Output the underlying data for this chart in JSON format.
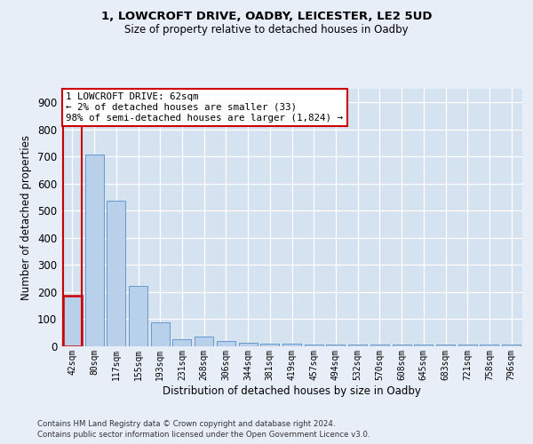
{
  "title1": "1, LOWCROFT DRIVE, OADBY, LEICESTER, LE2 5UD",
  "title2": "Size of property relative to detached houses in Oadby",
  "xlabel": "Distribution of detached houses by size in Oadby",
  "ylabel": "Number of detached properties",
  "categories": [
    "42sqm",
    "80sqm",
    "117sqm",
    "155sqm",
    "193sqm",
    "231sqm",
    "268sqm",
    "306sqm",
    "344sqm",
    "381sqm",
    "419sqm",
    "457sqm",
    "494sqm",
    "532sqm",
    "570sqm",
    "608sqm",
    "645sqm",
    "683sqm",
    "721sqm",
    "758sqm",
    "796sqm"
  ],
  "values": [
    187,
    706,
    538,
    222,
    90,
    27,
    36,
    21,
    13,
    10,
    11,
    7,
    6,
    6,
    7,
    6,
    6,
    5,
    6,
    5,
    5
  ],
  "bar_color": "#b8d0ea",
  "bar_edge_color": "#6699cc",
  "highlight_bar_index": 0,
  "highlight_color": "#cc0000",
  "annotation_text": "1 LOWCROFT DRIVE: 62sqm\n← 2% of detached houses are smaller (33)\n98% of semi-detached houses are larger (1,824) →",
  "annotation_box_color": "#ffffff",
  "annotation_box_edge": "#cc0000",
  "ylim": [
    0,
    950
  ],
  "yticks": [
    0,
    100,
    200,
    300,
    400,
    500,
    600,
    700,
    800,
    900
  ],
  "footnote1": "Contains HM Land Registry data © Crown copyright and database right 2024.",
  "footnote2": "Contains public sector information licensed under the Open Government Licence v3.0.",
  "bg_color": "#e8eef8",
  "plot_bg_color": "#d5e2f0"
}
